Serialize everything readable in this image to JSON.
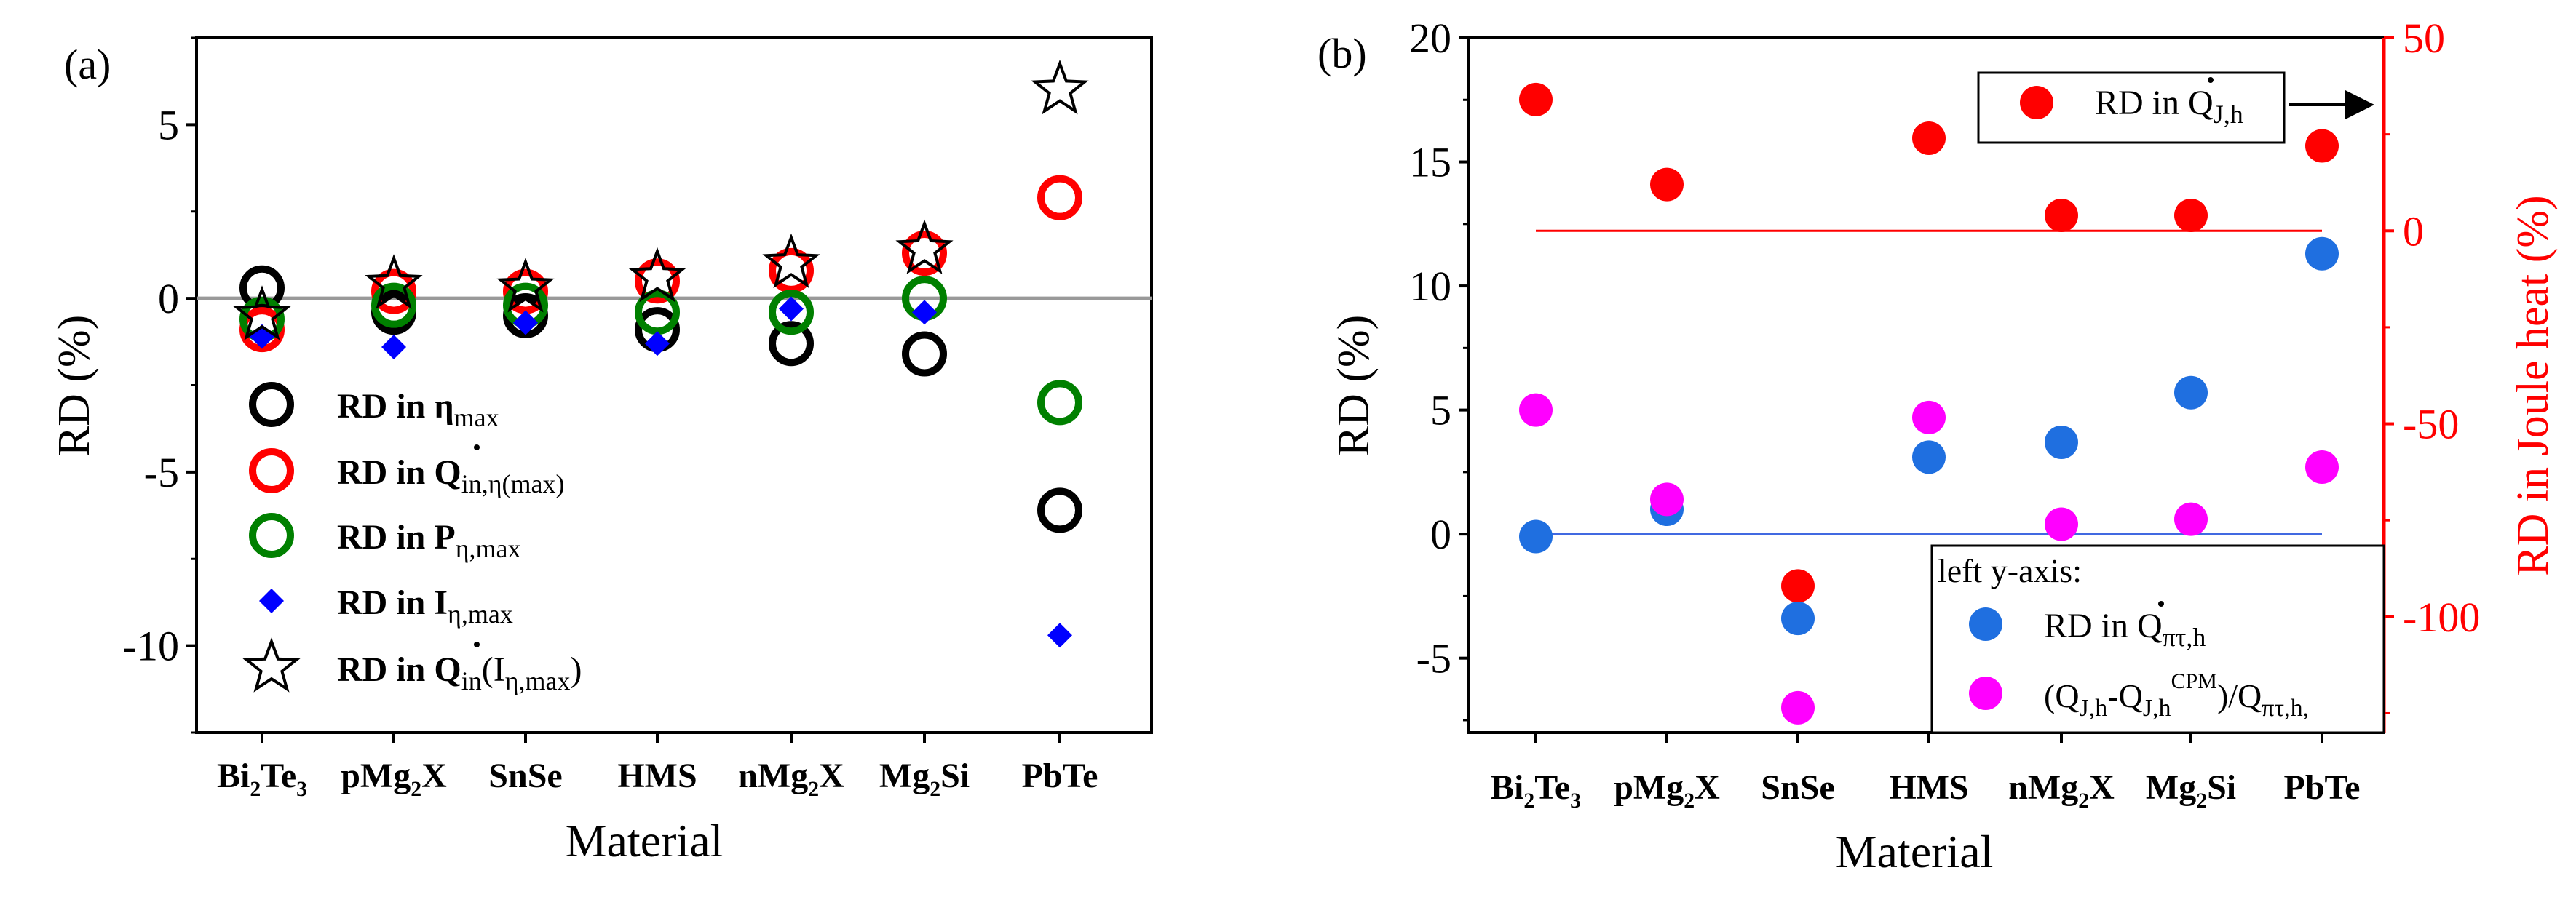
{
  "chart_data": [
    {
      "type": "scatter",
      "panel_label": "(a)",
      "xlabel": "Material",
      "ylabel": "RD (%)",
      "ylim": [
        -12.5,
        7.5
      ],
      "yticks": [
        5,
        0,
        -5,
        -10
      ],
      "ytick_labels": [
        "5",
        "0",
        "-5",
        "-10"
      ],
      "categories": [
        {
          "base": "Bi",
          "sub1": "2",
          "mid": "Te",
          "sub2": "3"
        },
        {
          "base": "pMg",
          "sub1": "2",
          "mid": "X",
          "sub2": ""
        },
        {
          "base": "SnSe",
          "sub1": "",
          "mid": "",
          "sub2": ""
        },
        {
          "base": "HMS",
          "sub1": "",
          "mid": "",
          "sub2": ""
        },
        {
          "base": "nMg",
          "sub1": "2",
          "mid": "X",
          "sub2": ""
        },
        {
          "base": "Mg",
          "sub1": "2",
          "mid": "Si",
          "sub2": ""
        },
        {
          "base": "PbTe",
          "sub1": "",
          "mid": "",
          "sub2": ""
        }
      ],
      "reference_line": 0,
      "series": [
        {
          "key": "eta",
          "marker": "ring",
          "color": "#000000",
          "legend_main": "RD in η",
          "legend_sub": "max",
          "legend_tail": "",
          "values": [
            0.3,
            -0.4,
            -0.5,
            -0.9,
            -1.3,
            -1.6,
            -6.1
          ]
        },
        {
          "key": "qin",
          "marker": "ring",
          "color": "#ff0000",
          "legend_main": "RD in Q",
          "legend_sub": "in,η(max)",
          "legend_tail": "",
          "values": [
            -0.9,
            0.2,
            0.2,
            0.5,
            0.8,
            1.3,
            2.9
          ]
        },
        {
          "key": "p",
          "marker": "ring",
          "color": "#008000",
          "legend_main": "RD in P",
          "legend_sub": "η,max",
          "legend_tail": "",
          "values": [
            -0.6,
            -0.2,
            -0.2,
            -0.4,
            -0.4,
            0.0,
            -3.0
          ]
        },
        {
          "key": "i",
          "marker": "diamond",
          "color": "#0000ff",
          "legend_main": "RD in I",
          "legend_sub": "η,max",
          "legend_tail": "",
          "values": [
            -1.1,
            -1.4,
            -0.7,
            -1.3,
            -0.3,
            -0.4,
            -9.7
          ]
        },
        {
          "key": "qinI",
          "marker": "star",
          "color": "#000000",
          "legend_main": "RD in Q",
          "legend_sub": "in",
          "legend_tail": "(I",
          "legend_tail_sub": "η,max",
          "legend_tail_end": ")",
          "values": [
            -0.5,
            0.4,
            0.3,
            0.6,
            1.0,
            1.4,
            6.0
          ]
        }
      ]
    },
    {
      "type": "scatter",
      "panel_label": "(b)",
      "xlabel": "Material",
      "ylabel": "RD (%)",
      "ylabel_right": "RD in Joule heat (%)",
      "ylim": [
        -8,
        20
      ],
      "ylim_right": [
        -130,
        50
      ],
      "yticks": [
        20,
        15,
        10,
        5,
        0,
        -5
      ],
      "ytick_labels": [
        "20",
        "15",
        "10",
        "5",
        "0",
        "-5"
      ],
      "yticks_right": [
        50,
        0,
        -50,
        -100
      ],
      "ytick_labels_right": [
        "50",
        "0",
        "-50",
        "-100"
      ],
      "categories": [
        {
          "base": "Bi",
          "sub1": "2",
          "mid": "Te",
          "sub2": "3"
        },
        {
          "base": "pMg",
          "sub1": "2",
          "mid": "X",
          "sub2": ""
        },
        {
          "base": "SnSe",
          "sub1": "",
          "mid": "",
          "sub2": ""
        },
        {
          "base": "HMS",
          "sub1": "",
          "mid": "",
          "sub2": ""
        },
        {
          "base": "nMg",
          "sub1": "2",
          "mid": "X",
          "sub2": ""
        },
        {
          "base": "Mg",
          "sub1": "2",
          "mid": "Si",
          "sub2": ""
        },
        {
          "base": "PbTe",
          "sub1": "",
          "mid": "",
          "sub2": ""
        }
      ],
      "reference_line_left": 0,
      "reference_line_right": 0,
      "series": [
        {
          "key": "qjh",
          "axis": "right",
          "color": "#ff0000",
          "legend_main": "RD in Q",
          "legend_sub": "J,h",
          "values": [
            34,
            12,
            -92,
            24,
            4,
            4,
            22
          ]
        },
        {
          "key": "qpt",
          "axis": "left",
          "color": "#1f6fe0",
          "legend_main": "RD in Q",
          "legend_sub": "πτ,h",
          "values": [
            -0.1,
            1.0,
            -3.4,
            3.1,
            3.7,
            5.7,
            11.3
          ]
        },
        {
          "key": "cpm",
          "axis": "left",
          "color": "#ff00ff",
          "legend_main": "(Q",
          "legend_sub": "J,h",
          "legend_mid": "-Q",
          "legend_sub2": "J,h",
          "legend_sup2": "CPM",
          "legend_mid2": ")/Q",
          "legend_sub3": "πτ,h,",
          "values": [
            5.0,
            1.4,
            -7.0,
            4.7,
            0.4,
            0.6,
            2.7
          ]
        }
      ],
      "legend_box_title": "left y-axis:"
    }
  ]
}
